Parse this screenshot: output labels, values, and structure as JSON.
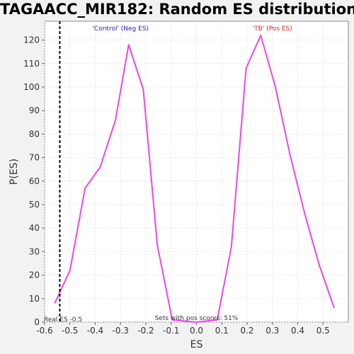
{
  "chart_data": {
    "type": "line",
    "title": "TAGAACC_MIR182: Random ES distribution",
    "xlabel": "ES",
    "ylabel": "P(ES)",
    "xlim": [
      -0.6,
      0.6
    ],
    "ylim": [
      0,
      128
    ],
    "x_ticks": [
      -0.6,
      -0.5,
      -0.4,
      -0.3,
      -0.2,
      -0.1,
      0.0,
      0.1,
      0.2,
      0.3,
      0.4,
      0.5
    ],
    "x_tick_labels": [
      "-0.6",
      "-0.5",
      "-0.4",
      "-0.3",
      "-0.2",
      "-0.1",
      "0.0",
      "0.1",
      "0.2",
      "0.3",
      "0.4",
      "0.5"
    ],
    "y_ticks": [
      0,
      10,
      20,
      30,
      40,
      50,
      60,
      70,
      80,
      90,
      100,
      110,
      120
    ],
    "y_tick_labels": [
      "0",
      "10",
      "20",
      "30",
      "40",
      "50",
      "60",
      "70",
      "80",
      "90",
      "100",
      "110",
      "120"
    ],
    "grid": true,
    "series": [
      {
        "color": "#ee44ee",
        "x": [
          -0.56,
          -0.5,
          -0.44,
          -0.38,
          -0.32,
          -0.268,
          -0.21,
          -0.155,
          -0.096,
          0.0,
          0.082,
          0.138,
          0.196,
          0.254,
          0.312,
          0.37,
          0.428,
          0.486,
          0.544
        ],
        "values": [
          8,
          22,
          57,
          66,
          86,
          118,
          99,
          33,
          1,
          0,
          1,
          32,
          108,
          122,
          100,
          71,
          46,
          24,
          6
        ]
      }
    ],
    "real_es": -0.54,
    "annotations": {
      "neg_label": "'Control' (Neg ES)",
      "pos_label": "'TB' (Pos ES)",
      "real_es_label": "Real ES -0.5",
      "pos_scores_label": "Sets with pos scores: 51%"
    },
    "colors": {
      "neg_label": "#2222cc",
      "pos_label": "#dd2222",
      "real_es_line": "#000000"
    }
  }
}
